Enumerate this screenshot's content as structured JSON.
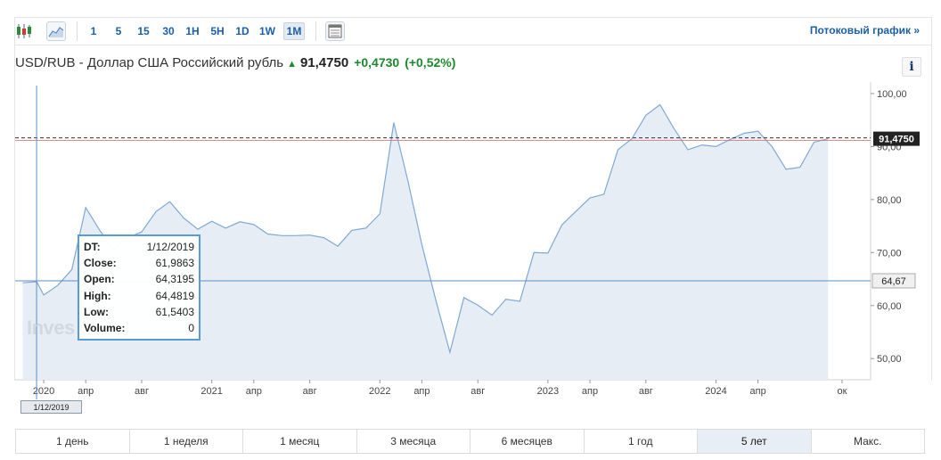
{
  "toolbar": {
    "timeframes": [
      "1",
      "5",
      "15",
      "30",
      "1H",
      "5H",
      "1D",
      "1W",
      "1M"
    ],
    "active_timeframe": "1M",
    "stream_link": "Потоковый график »"
  },
  "header": {
    "instrument": "USD/RUB - Доллар США Российский рубль",
    "price": "91,4750",
    "change": "+0,4730",
    "change_pct": "(+0,52%)",
    "up_color": "#1b8a2c"
  },
  "info_label": "i",
  "tooltip": {
    "rows": [
      {
        "key": "DT:",
        "value": "1/12/2019"
      },
      {
        "key": "Close:",
        "value": "61,9863"
      },
      {
        "key": "Open:",
        "value": "64,3195"
      },
      {
        "key": "High:",
        "value": "64,4819"
      },
      {
        "key": "Low:",
        "value": "61,5403"
      },
      {
        "key": "Volume:",
        "value": "0"
      }
    ]
  },
  "watermark": "Inves",
  "cursor": {
    "date_label": "1/12/2019",
    "price_label": "64,67",
    "price": 64.67
  },
  "range_buttons": [
    "1 день",
    "1 неделя",
    "1 месяц",
    "3 месяца",
    "6 месяцев",
    "1 год",
    "5 лет",
    "Макс."
  ],
  "active_range": "5 лет",
  "chart_data": {
    "type": "area",
    "current_price": 91.475,
    "current_price_label": "91,4750",
    "ylim": [
      46,
      101.5
    ],
    "yticks": [
      {
        "v": 100,
        "label": "100,00"
      },
      {
        "v": 90,
        "label": "90,00"
      },
      {
        "v": 80,
        "label": "80,00"
      },
      {
        "v": 70,
        "label": "70,00"
      },
      {
        "v": 60,
        "label": "60,00"
      },
      {
        "v": 50,
        "label": "50,00"
      }
    ],
    "xlim": [
      2019.83,
      2024.92
    ],
    "xticks": [
      {
        "t": 2020.0,
        "label": "2020"
      },
      {
        "t": 2020.25,
        "label": "апр"
      },
      {
        "t": 2020.583,
        "label": "авг"
      },
      {
        "t": 2021.0,
        "label": "2021"
      },
      {
        "t": 2021.25,
        "label": "апр"
      },
      {
        "t": 2021.583,
        "label": "авг"
      },
      {
        "t": 2022.0,
        "label": "2022"
      },
      {
        "t": 2022.25,
        "label": "апр"
      },
      {
        "t": 2022.583,
        "label": "авг"
      },
      {
        "t": 2023.0,
        "label": "2023"
      },
      {
        "t": 2023.25,
        "label": "апр"
      },
      {
        "t": 2023.583,
        "label": "авг"
      },
      {
        "t": 2024.0,
        "label": "2024"
      },
      {
        "t": 2024.25,
        "label": "апр"
      },
      {
        "t": 2024.75,
        "label": "ок"
      }
    ],
    "series": [
      {
        "values": [
          [
            2019.875,
            64.3
          ],
          [
            2019.958,
            64.5
          ],
          [
            2020.0,
            62.0
          ],
          [
            2020.083,
            63.8
          ],
          [
            2020.167,
            66.8
          ],
          [
            2020.25,
            78.5
          ],
          [
            2020.333,
            74.2
          ],
          [
            2020.417,
            70.5
          ],
          [
            2020.5,
            72.8
          ],
          [
            2020.583,
            73.9
          ],
          [
            2020.667,
            77.7
          ],
          [
            2020.75,
            79.6
          ],
          [
            2020.833,
            76.5
          ],
          [
            2020.917,
            74.4
          ],
          [
            2021.0,
            75.9
          ],
          [
            2021.083,
            74.6
          ],
          [
            2021.167,
            75.8
          ],
          [
            2021.25,
            75.3
          ],
          [
            2021.333,
            73.5
          ],
          [
            2021.417,
            73.2
          ],
          [
            2021.5,
            73.2
          ],
          [
            2021.583,
            73.3
          ],
          [
            2021.667,
            72.8
          ],
          [
            2021.75,
            71.2
          ],
          [
            2021.833,
            74.2
          ],
          [
            2021.917,
            74.6
          ],
          [
            2022.0,
            77.3
          ],
          [
            2022.083,
            94.5
          ],
          [
            2022.167,
            83.5
          ],
          [
            2022.25,
            71.5
          ],
          [
            2022.333,
            61.0
          ],
          [
            2022.417,
            51.2
          ],
          [
            2022.5,
            61.5
          ],
          [
            2022.583,
            60.1
          ],
          [
            2022.667,
            58.2
          ],
          [
            2022.75,
            61.2
          ],
          [
            2022.833,
            60.8
          ],
          [
            2022.917,
            70.0
          ],
          [
            2023.0,
            69.9
          ],
          [
            2023.083,
            75.2
          ],
          [
            2023.167,
            77.8
          ],
          [
            2023.25,
            80.3
          ],
          [
            2023.333,
            81.0
          ],
          [
            2023.417,
            89.4
          ],
          [
            2023.5,
            91.5
          ],
          [
            2023.583,
            95.9
          ],
          [
            2023.667,
            97.9
          ],
          [
            2023.75,
            93.4
          ],
          [
            2023.833,
            89.4
          ],
          [
            2023.917,
            90.3
          ],
          [
            2024.0,
            90.0
          ],
          [
            2024.083,
            91.3
          ],
          [
            2024.167,
            92.5
          ],
          [
            2024.25,
            92.9
          ],
          [
            2024.333,
            90.0
          ],
          [
            2024.417,
            85.7
          ],
          [
            2024.5,
            86.1
          ],
          [
            2024.583,
            90.8
          ],
          [
            2024.667,
            91.475
          ]
        ]
      }
    ]
  }
}
